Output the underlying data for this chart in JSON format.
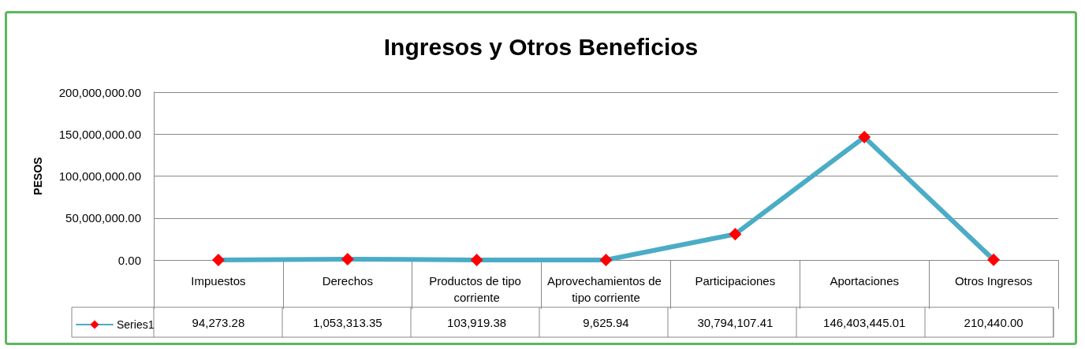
{
  "chart_data": {
    "type": "line",
    "title": "Ingresos y Otros Beneficios",
    "ylabel": "PESOS",
    "categories": [
      "Impuestos",
      "Derechos",
      "Productos de tipo corriente",
      "Aprovechamientos de tipo corriente",
      "Participaciones",
      "Aportaciones",
      "Otros Ingresos"
    ],
    "series": [
      {
        "name": "Series1",
        "color": "#4bacc6",
        "colors": [
          "#ff0000",
          "#ff0000",
          "#ff0000",
          "#ff0000",
          "#ff0000",
          "#ff0000",
          "#ff0000"
        ],
        "values": [
          94273.28,
          1053313.35,
          103919.38,
          9625.94,
          30794107.41,
          146403445.01,
          210440.0
        ],
        "value_labels": [
          "94,273.28",
          "1,053,313.35",
          "103,919.38",
          "9,625.94",
          "30,794,107.41",
          "146,403,445.01",
          "210,440.00"
        ]
      }
    ],
    "ylim": [
      0,
      200000000
    ],
    "yticks": [
      {
        "value": 0,
        "label": "0.00"
      },
      {
        "value": 50000000,
        "label": "50,000,000.00"
      },
      {
        "value": 100000000,
        "label": "100,000,000.00"
      },
      {
        "value": 150000000,
        "label": "150,000,000.00"
      },
      {
        "value": 200000000,
        "label": "200,000,000.00"
      }
    ],
    "grid": "y",
    "legend": "bottom left",
    "marker": "diamond",
    "line_style": "solid"
  }
}
